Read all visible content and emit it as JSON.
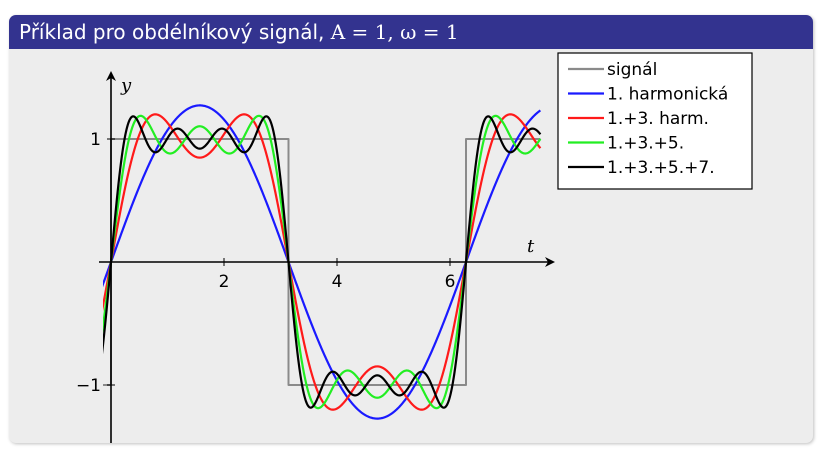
{
  "header": {
    "title_prefix": "Příklad pro obdélníkový signál, ",
    "title_math": "A = 1, ω = 1"
  },
  "chart_data": {
    "type": "line",
    "title": "Příklad pro obdélníkový signál, A = 1, ω = 1",
    "xlabel": "t",
    "ylabel": "y",
    "xlim": [
      -0.3,
      7.6
    ],
    "ylim": [
      -1.5,
      1.45
    ],
    "x_ticks": [
      2,
      4,
      6
    ],
    "x_tick_labels": [
      "2",
      "4",
      "6"
    ],
    "y_ticks": [
      1,
      -1
    ],
    "y_tick_labels": [
      "1",
      "−1"
    ],
    "grid": false,
    "legend_position": "top-right",
    "series": [
      {
        "name": "signál",
        "color": "#8a8a8a",
        "kind": "square",
        "period": 6.2832,
        "amplitude": 1
      },
      {
        "name": "1. harmonická",
        "color": "#1a1aff",
        "kind": "fourier",
        "harmonics": [
          1
        ]
      },
      {
        "name": "1.+3. harm.",
        "color": "#ff1a1a",
        "kind": "fourier",
        "harmonics": [
          1,
          3
        ]
      },
      {
        "name": "1.+3.+5.",
        "color": "#22ee22",
        "kind": "fourier",
        "harmonics": [
          1,
          3,
          5
        ]
      },
      {
        "name": "1.+3.+5.+7.",
        "color": "#000000",
        "kind": "fourier",
        "harmonics": [
          1,
          3,
          5,
          7
        ]
      }
    ]
  }
}
